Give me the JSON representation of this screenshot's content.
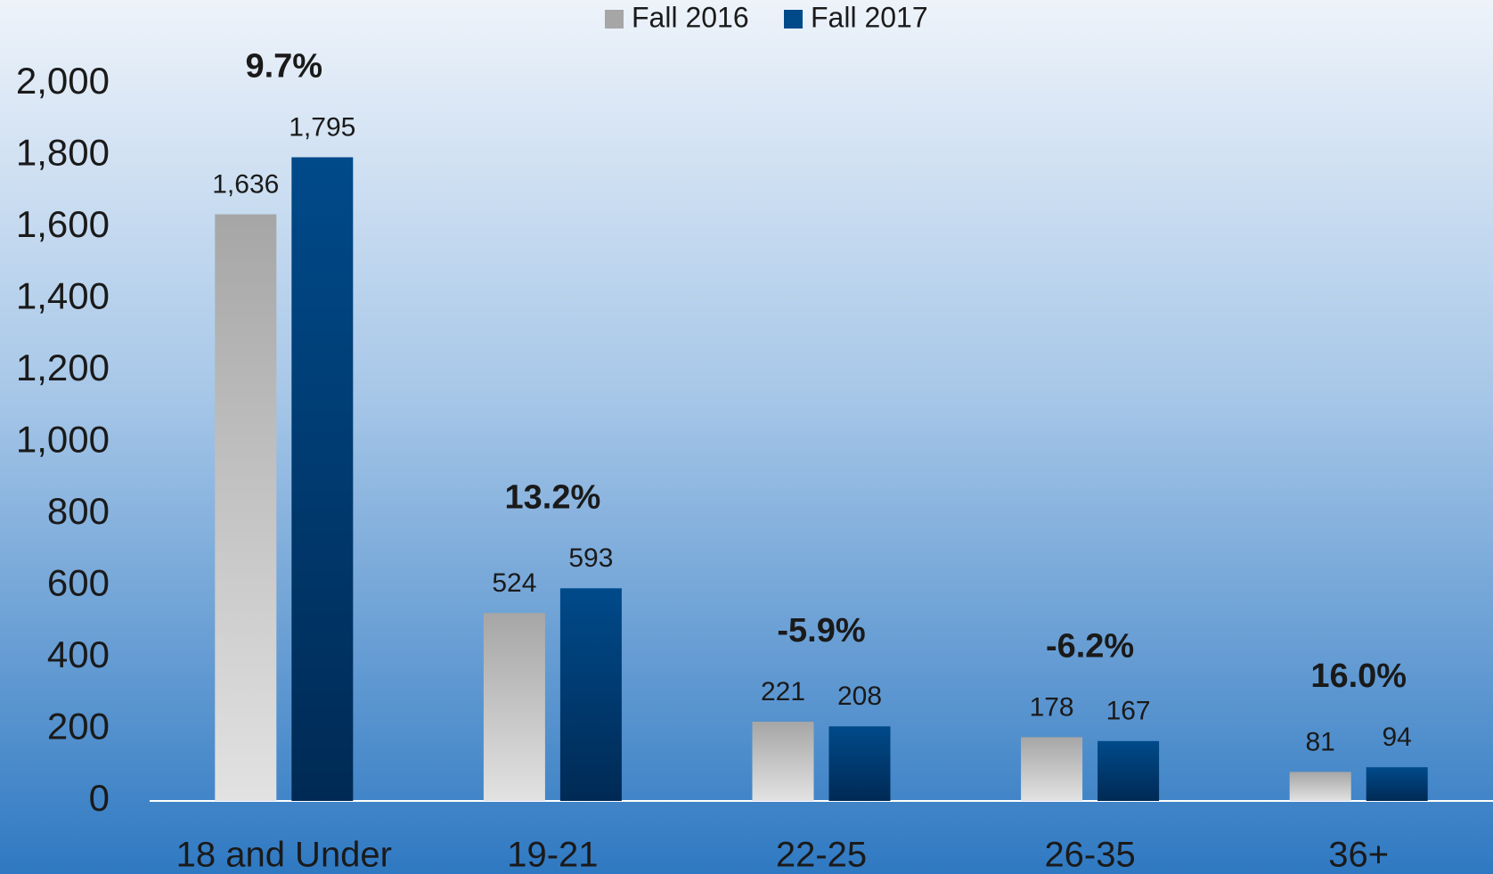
{
  "chart_data": {
    "type": "bar",
    "categories": [
      "18 and Under",
      "19-21",
      "22-25",
      "26-35",
      "36+"
    ],
    "series": [
      {
        "name": "Fall 2016",
        "color": "#a6a6a6",
        "values": [
          1636,
          524,
          221,
          178,
          81
        ],
        "value_labels": [
          "1,636",
          "524",
          "221",
          "178",
          "81"
        ]
      },
      {
        "name": "Fall 2017",
        "color": "#004a8a",
        "values": [
          1795,
          593,
          208,
          167,
          94
        ],
        "value_labels": [
          "1,795",
          "593",
          "208",
          "167",
          "94"
        ]
      }
    ],
    "annotations": [
      "9.7%",
      "13.2%",
      "-5.9%",
      "-6.2%",
      "16.0%"
    ],
    "ylim": [
      0,
      2000
    ],
    "yticks": [
      0,
      200,
      400,
      600,
      800,
      {
        "value": 1000,
        "label": "1,000"
      },
      {
        "value": 1200,
        "label": "1,200"
      },
      {
        "value": 1400,
        "label": "1,400"
      },
      {
        "value": 1600,
        "label": "1,600"
      },
      {
        "value": 1800,
        "label": "1,800"
      },
      {
        "value": 2000,
        "label": "2,000"
      }
    ],
    "grid": false,
    "legend": "top"
  }
}
